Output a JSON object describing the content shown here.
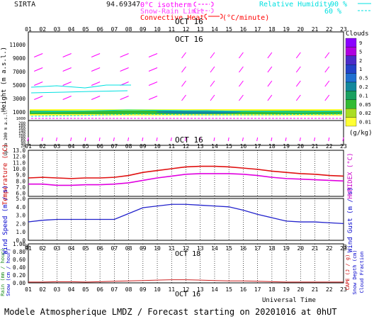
{
  "header": {
    "site": "SIRTA",
    "coords": "94.69347",
    "legend_zero": "0°C isotherm",
    "legend_snow": "Snow-Rain Limit",
    "legend_conv": "Convective Heat.",
    "legend_conv_unit": "(°C/minute)",
    "legend_rh": "Relative Humidity",
    "rh_90": "90 %",
    "rh_60": "60 %",
    "colors": {
      "isotherm": "#ff00ff",
      "snow": "#ff44ff",
      "convective": "#ff0000",
      "rh": "#00e5e5"
    }
  },
  "footer": {
    "universal_time": "Universal Time",
    "title": "Modele Atmospherique LMDZ / Forecast starting on 20201016 at 0hUT"
  },
  "hours": [
    "01",
    "02",
    "03",
    "04",
    "05",
    "06",
    "07",
    "08",
    "09",
    "10",
    "11",
    "12",
    "13",
    "14",
    "15",
    "16",
    "17",
    "18",
    "19",
    "20",
    "21",
    "22",
    "23"
  ],
  "date_label": "OCT 16",
  "date_label_rain": "OCT 18",
  "height_panel": {
    "ylabel": "Height (m a.s.l.)",
    "ticks": [
      "11000",
      "9000",
      "7000",
      "5000",
      "3000",
      "1000"
    ],
    "low_ylabel": "Up to 200 m a.s.l.",
    "low_ticks": [
      "1000",
      "200",
      "180",
      "160",
      "140",
      "120",
      "100",
      "80",
      "60",
      "40",
      "20"
    ]
  },
  "clouds_scale": {
    "title": "Clouds",
    "unit": "(g/kg)",
    "levels": [
      "9",
      "5",
      "2",
      "1",
      "0.5",
      "0.2",
      "0.1",
      "0.05",
      "0.02",
      "0.01"
    ],
    "colors": [
      "#8b00ff",
      "#b000e0",
      "#4b2cc8",
      "#2342c8",
      "#1f6fd0",
      "#12889c",
      "#1aa060",
      "#33bb33",
      "#aadd22",
      "#ffff33"
    ]
  },
  "chart_data": [
    {
      "type": "line",
      "title": "",
      "x": [
        "01",
        "02",
        "03",
        "04",
        "05",
        "06",
        "07",
        "08",
        "09",
        "10",
        "11",
        "12",
        "13",
        "14",
        "15",
        "16",
        "17",
        "18",
        "19",
        "20",
        "21",
        "22",
        "23"
      ],
      "xlabel": "",
      "ylabel": "Temperature (°C)",
      "ylabel_right": "HUMIDEX (°C)",
      "yticks": [
        "13.0",
        "12.0",
        "11.0",
        "10.0",
        "9.0",
        "8.0",
        "7.0",
        "6.0"
      ],
      "ylim": [
        5.5,
        13.0
      ],
      "series": [
        {
          "values": [
            8.5,
            8.6,
            8.5,
            8.4,
            8.5,
            8.5,
            8.6,
            8.9,
            9.4,
            9.7,
            10.0,
            10.3,
            10.4,
            10.4,
            10.3,
            10.1,
            9.9,
            9.6,
            9.4,
            9.2,
            9.1,
            8.9,
            8.8
          ],
          "color": "#e01010"
        },
        {
          "values": [
            7.5,
            7.5,
            7.3,
            7.3,
            7.4,
            7.4,
            7.5,
            7.7,
            8.1,
            8.5,
            8.8,
            9.1,
            9.2,
            9.2,
            9.2,
            9.1,
            8.9,
            8.6,
            8.4,
            8.3,
            8.2,
            8.1,
            8.0
          ],
          "color": "#e000e0"
        }
      ]
    },
    {
      "type": "line",
      "title": "",
      "x": [
        "01",
        "02",
        "03",
        "04",
        "05",
        "06",
        "07",
        "08",
        "09",
        "10",
        "11",
        "12",
        "13",
        "14",
        "15",
        "16",
        "17",
        "18",
        "19",
        "20",
        "21",
        "22",
        "23"
      ],
      "ylabel": "Wind Speed (m / s)",
      "ylabel_right": "Wind Gust (m / s)",
      "yticks": [
        "5.0",
        "4.0",
        "3.0",
        "2.0",
        "1.0",
        "0.0"
      ],
      "ylim": [
        0,
        5.0
      ],
      "series": [
        {
          "values": [
            2.2,
            2.4,
            2.5,
            2.5,
            2.5,
            2.5,
            2.5,
            3.2,
            3.9,
            4.1,
            4.3,
            4.3,
            4.2,
            4.1,
            4.0,
            3.6,
            3.1,
            2.7,
            2.3,
            2.2,
            2.2,
            2.1,
            2.0
          ],
          "color": "#2222cc"
        }
      ]
    },
    {
      "type": "line",
      "title": "",
      "x": [
        "01",
        "02",
        "03",
        "04",
        "05",
        "06",
        "07",
        "08",
        "09",
        "10",
        "11",
        "12",
        "13",
        "14",
        "15",
        "16",
        "17",
        "18",
        "19",
        "20",
        "21",
        "22",
        "23"
      ],
      "ylabel": "Rain (mm / hour)",
      "ylabel2": "Snow (cm / hour)",
      "ylabel_right": "CAPE (J / g)",
      "ylabel_right2": "Snow Depth (cm)",
      "ylabel_right3": "Cloud Fraction",
      "yticks": [
        "1.00",
        "0.80",
        "0.60",
        "0.40",
        "0.20",
        "0.00"
      ],
      "ylim": [
        0,
        1.0
      ],
      "series": [
        {
          "values": [
            0.02,
            0.02,
            0.03,
            0.03,
            0.02,
            0.03,
            0.04,
            0.05,
            0.06,
            0.07,
            0.08,
            0.08,
            0.07,
            0.06,
            0.05,
            0.05,
            0.04,
            0.03,
            0.02,
            0.02,
            0.02,
            0.02,
            0.02
          ],
          "color": "#cc2222"
        }
      ]
    }
  ]
}
